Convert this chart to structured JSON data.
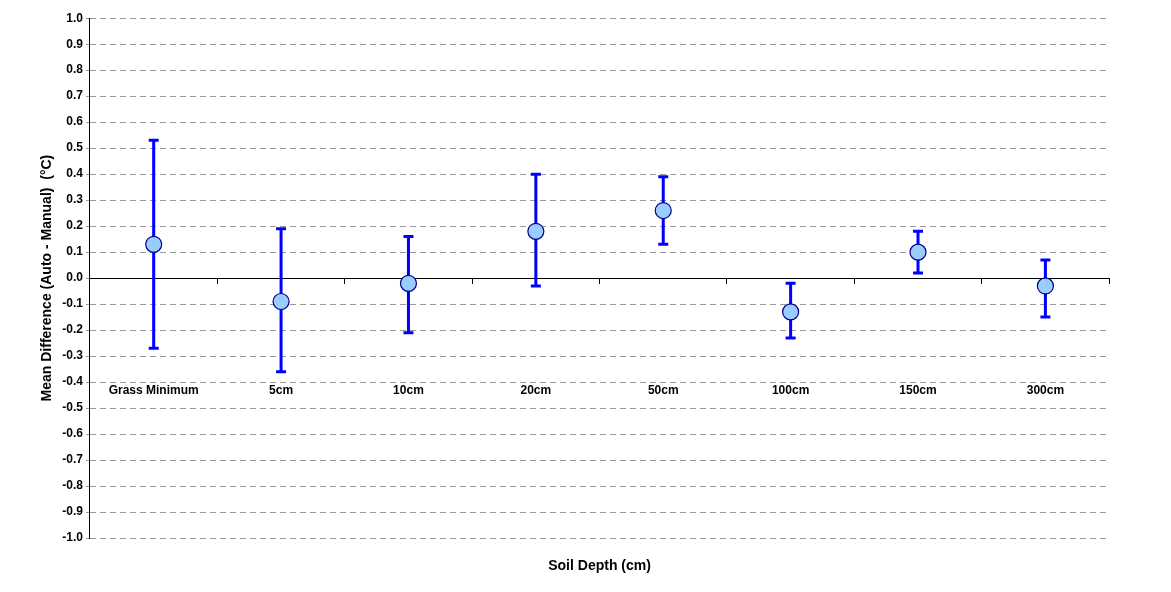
{
  "chart_data": {
    "type": "scatter",
    "xlabel": "Soil Depth (cm)",
    "ylabel": "Mean Difference (Auto - Manual)  (°C)",
    "categories": [
      "Grass Minimum",
      "5cm",
      "10cm",
      "20cm",
      "50cm",
      "100cm",
      "150cm",
      "300cm"
    ],
    "series": [
      {
        "color": "#99ccff",
        "values": [
          0.13,
          -0.09,
          -0.02,
          0.18,
          0.26,
          -0.13,
          0.1,
          -0.03
        ],
        "errors": [
          [
            -0.27,
            0.53
          ],
          [
            -0.36,
            0.19
          ],
          [
            -0.21,
            0.16
          ],
          [
            -0.03,
            0.4
          ],
          [
            0.13,
            0.39
          ],
          [
            -0.23,
            -0.02
          ],
          [
            0.02,
            0.18
          ],
          [
            -0.15,
            0.07
          ]
        ]
      }
    ],
    "ylim": [
      -1,
      1
    ],
    "yticks": [
      {
        "value": -1,
        "label": "-1.0"
      },
      {
        "value": -0.9,
        "label": "-0.9"
      },
      {
        "value": -0.8,
        "label": "-0.8"
      },
      {
        "value": -0.7,
        "label": "-0.7"
      },
      {
        "value": -0.6,
        "label": "-0.6"
      },
      {
        "value": -0.5,
        "label": "-0.5"
      },
      {
        "value": -0.4,
        "label": "-0.4"
      },
      {
        "value": -0.3,
        "label": "-0.3"
      },
      {
        "value": -0.2,
        "label": "-0.2"
      },
      {
        "value": -0.1,
        "label": "-0.1"
      },
      {
        "value": 0,
        "label": "0.0"
      },
      {
        "value": 0.1,
        "label": "0.1"
      },
      {
        "value": 0.2,
        "label": "0.2"
      },
      {
        "value": 0.3,
        "label": "0.3"
      },
      {
        "value": 0.4,
        "label": "0.4"
      },
      {
        "value": 0.5,
        "label": "0.5"
      },
      {
        "value": 0.6,
        "label": "0.6"
      },
      {
        "value": 0.7,
        "label": "0.7"
      },
      {
        "value": 0.8,
        "label": "0.8"
      },
      {
        "value": 0.9,
        "label": "0.9"
      },
      {
        "value": 1,
        "label": "1.0"
      }
    ],
    "grid": "y",
    "legend": false,
    "marker": "circle"
  }
}
